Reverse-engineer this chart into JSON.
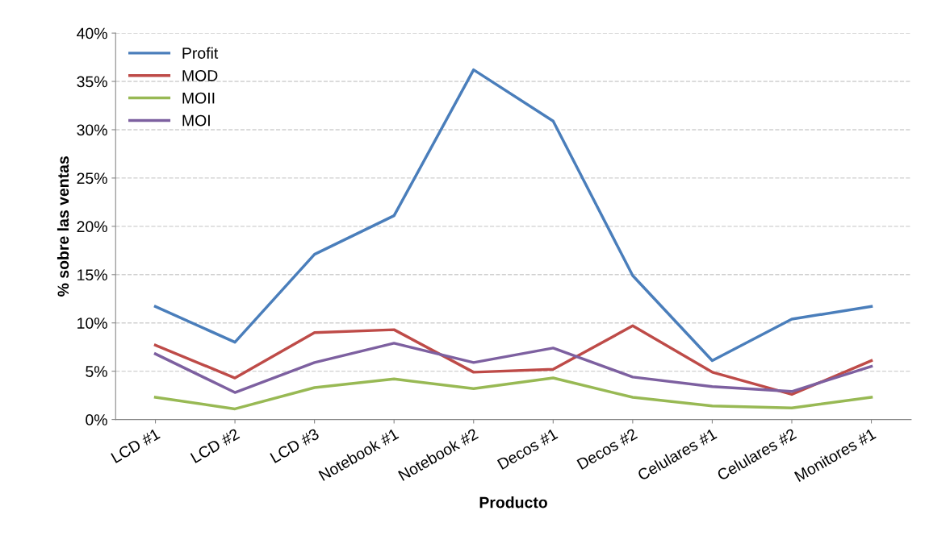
{
  "chart_data": {
    "type": "line",
    "xlabel": "Producto",
    "ylabel": "% sobre las ventas",
    "categories": [
      "LCD #1",
      "LCD #2",
      "LCD #3",
      "Notebook #1",
      "Notebook #2",
      "Decos #1",
      "Decos #2",
      "Celulares #1",
      "Celulares #2",
      "Monitores #1"
    ],
    "series": [
      {
        "name": "Profit",
        "color": "#4a7ebb",
        "values": [
          11.7,
          8.0,
          17.1,
          21.1,
          36.2,
          30.9,
          14.9,
          6.1,
          10.4,
          11.7
        ]
      },
      {
        "name": "MOD",
        "color": "#be4b48",
        "values": [
          7.7,
          4.3,
          9.0,
          9.3,
          4.9,
          5.2,
          9.7,
          4.9,
          2.6,
          6.1
        ]
      },
      {
        "name": "MOII",
        "color": "#98b954",
        "values": [
          2.3,
          1.1,
          3.3,
          4.2,
          3.2,
          4.3,
          2.3,
          1.4,
          1.2,
          2.3
        ]
      },
      {
        "name": "MOI",
        "color": "#7d60a0",
        "values": [
          6.8,
          2.8,
          5.9,
          7.9,
          5.9,
          7.4,
          4.4,
          3.4,
          2.9,
          5.5
        ]
      }
    ],
    "ylim": [
      0,
      40
    ],
    "yticks": [
      {
        "value": 0,
        "label": "0%"
      },
      {
        "value": 5,
        "label": "5%"
      },
      {
        "value": 10,
        "label": "10%"
      },
      {
        "value": 15,
        "label": "15%"
      },
      {
        "value": 20,
        "label": "20%"
      },
      {
        "value": 25,
        "label": "25%"
      },
      {
        "value": 30,
        "label": "30%"
      },
      {
        "value": 35,
        "label": "35%"
      },
      {
        "value": 40,
        "label": "40%"
      }
    ],
    "grid": "y",
    "legend": "top left",
    "marker": "none",
    "line_style": "solid"
  }
}
